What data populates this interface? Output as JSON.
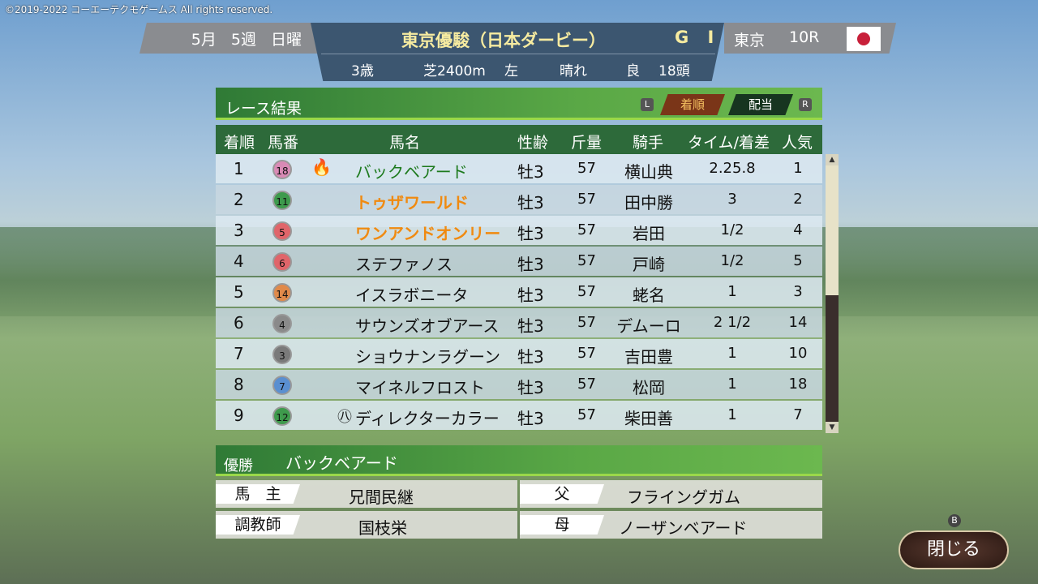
{
  "copyright": "©2019-2022 コーエーテクモゲームス All rights reserved.",
  "header": {
    "month": "5月",
    "week": "5週",
    "day": "日曜",
    "race_name": "東京優駿（日本ダービー）",
    "grade": "G I",
    "age": "3歳",
    "course": "芝2400m",
    "direction": "左",
    "weather": "晴れ",
    "going": "良",
    "runners": "18頭",
    "venue": "東京",
    "race_no": "10R",
    "flag": "japan-flag"
  },
  "panel": {
    "title": "レース結果",
    "key_l": "L",
    "key_r": "R",
    "tabs": [
      {
        "label": "着順",
        "active": true
      },
      {
        "label": "配当",
        "active": false
      }
    ]
  },
  "columns": [
    "着順",
    "馬番",
    "馬名",
    "性齢",
    "斤量",
    "騎手",
    "タイム/着差",
    "人気"
  ],
  "rows": [
    {
      "rank": "1",
      "num": "18",
      "ball": "#d98ab5",
      "icon": "🔥",
      "name": "バックベアード",
      "name_color": "#1d7a1d",
      "sexage": "牡3",
      "weight": "57",
      "jockey": "横山典",
      "time": "2.25.8",
      "pop": "1"
    },
    {
      "rank": "2",
      "num": "11",
      "ball": "#3e9a4c",
      "name": "トゥザワールド",
      "name_color": "#f08a10",
      "sexage": "牡3",
      "weight": "57",
      "jockey": "田中勝",
      "time": "3",
      "pop": "2"
    },
    {
      "rank": "3",
      "num": "5",
      "ball": "#e0656a",
      "name": "ワンアンドオンリー",
      "name_color": "#f08a10",
      "sexage": "牡3",
      "weight": "57",
      "jockey": "岩田",
      "time": "1/2",
      "pop": "4"
    },
    {
      "rank": "4",
      "num": "6",
      "ball": "#e0656a",
      "name": "ステファノス",
      "name_color": "#111111",
      "sexage": "牡3",
      "weight": "57",
      "jockey": "戸崎",
      "time": "1/2",
      "pop": "5"
    },
    {
      "rank": "5",
      "num": "14",
      "ball": "#e08a4a",
      "name": "イスラボニータ",
      "name_color": "#111111",
      "sexage": "牡3",
      "weight": "57",
      "jockey": "蛯名",
      "time": "1",
      "pop": "3"
    },
    {
      "rank": "6",
      "num": "4",
      "ball": "#8a8a8a",
      "name": "サウンズオブアース",
      "name_color": "#111111",
      "sexage": "牡3",
      "weight": "57",
      "jockey": "デムーロ",
      "time": "2 1/2",
      "pop": "14"
    },
    {
      "rank": "7",
      "num": "3",
      "ball": "#7a7a7a",
      "name": "ショウナンラグーン",
      "name_color": "#111111",
      "sexage": "牡3",
      "weight": "57",
      "jockey": "吉田豊",
      "time": "1",
      "pop": "10"
    },
    {
      "rank": "8",
      "num": "7",
      "ball": "#5a8fd0",
      "name": "マイネルフロスト",
      "name_color": "#111111",
      "sexage": "牡3",
      "weight": "57",
      "jockey": "松岡",
      "time": "1",
      "pop": "18"
    },
    {
      "rank": "9",
      "num": "12",
      "ball": "#3e9a4c",
      "mark": "㊇",
      "name": "ディレクターカラー",
      "name_color": "#111111",
      "sexage": "牡3",
      "weight": "57",
      "jockey": "柴田善",
      "time": "1",
      "pop": "7"
    }
  ],
  "winner": {
    "label": "優勝",
    "name": "バックベアード",
    "owner_label": "馬　主",
    "owner": "兄間民継",
    "trainer_label": "調教師",
    "trainer": "国枝栄",
    "sire_label": "父",
    "sire": "フライングガム",
    "dam_label": "母",
    "dam": "ノーザンベアード"
  },
  "close": {
    "label": "閉じる",
    "key": "B"
  }
}
